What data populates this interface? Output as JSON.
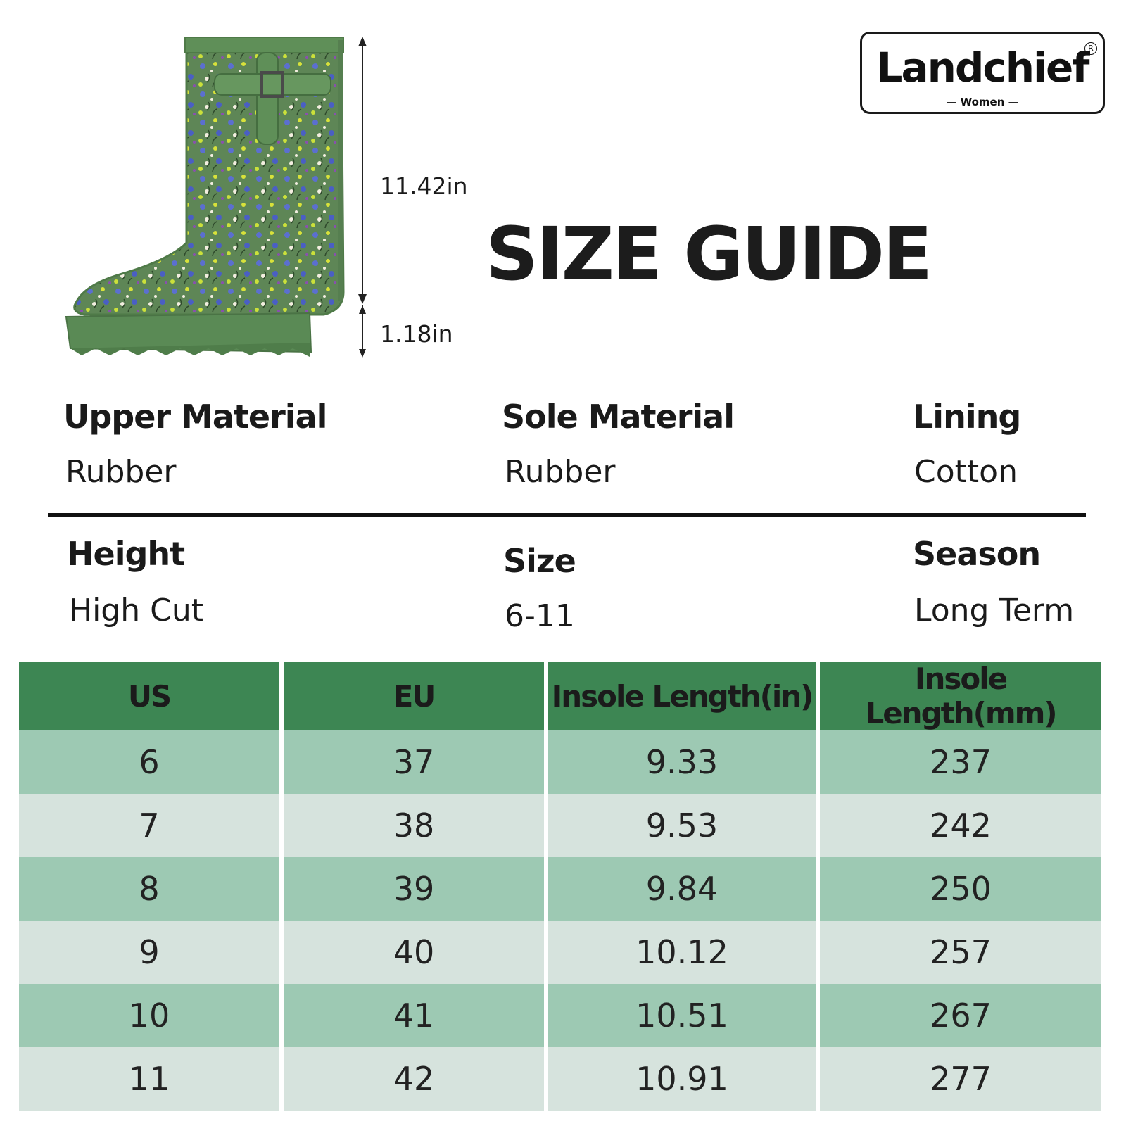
{
  "dimensions": {
    "shaft_height": "11.42in",
    "heel_height": "1.18in"
  },
  "logo": {
    "brand": "Landchief",
    "sub": "— Women —",
    "registered": "R"
  },
  "title": "SIZE GUIDE",
  "specs": [
    {
      "heading": "Upper Material",
      "value": "Rubber"
    },
    {
      "heading": "Sole Material",
      "value": "Rubber"
    },
    {
      "heading": "Lining",
      "value": "Cotton"
    },
    {
      "heading": "Height",
      "value": "High Cut"
    },
    {
      "heading": "Size",
      "value": "6-11"
    },
    {
      "heading": "Season",
      "value": "Long Term"
    }
  ],
  "table": {
    "headers": [
      "US",
      "EU",
      "Insole Length(in)",
      "Insole Length(mm)"
    ],
    "rows": [
      [
        "6",
        "37",
        "9.33",
        "237"
      ],
      [
        "7",
        "38",
        "9.53",
        "242"
      ],
      [
        "8",
        "39",
        "9.84",
        "250"
      ],
      [
        "9",
        "40",
        "10.12",
        "257"
      ],
      [
        "10",
        "41",
        "10.51",
        "267"
      ],
      [
        "11",
        "42",
        "10.91",
        "277"
      ]
    ]
  },
  "colors": {
    "header_green": "#3d8653",
    "row_green": "#9dc9b3",
    "row_grey": "#d6e3dd",
    "boot_green": "#5a8a55"
  }
}
